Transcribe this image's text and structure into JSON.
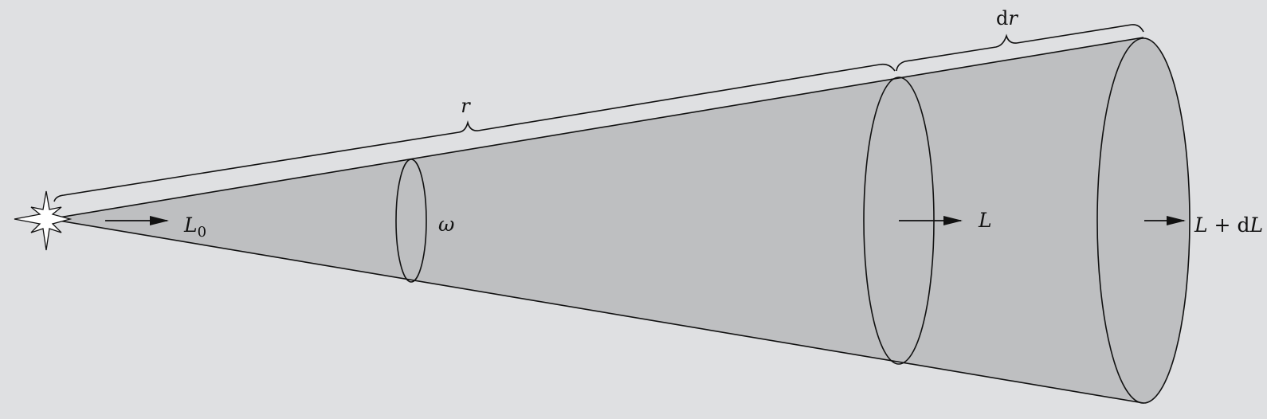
{
  "labels": {
    "r": "r",
    "dr_d": "d",
    "dr_r": "r",
    "omega": "ω",
    "L0_main": "L",
    "L0_sub": "0",
    "L": "L",
    "LdL_L1": "L",
    "LdL_plus": " + d",
    "LdL_L2": "L"
  },
  "colors": {
    "background": "#dfe0e2",
    "cone_fill": "#bebfc1",
    "stroke": "#111111"
  },
  "icons": {
    "source": "star-icon",
    "arrow": "right-arrow-icon"
  }
}
